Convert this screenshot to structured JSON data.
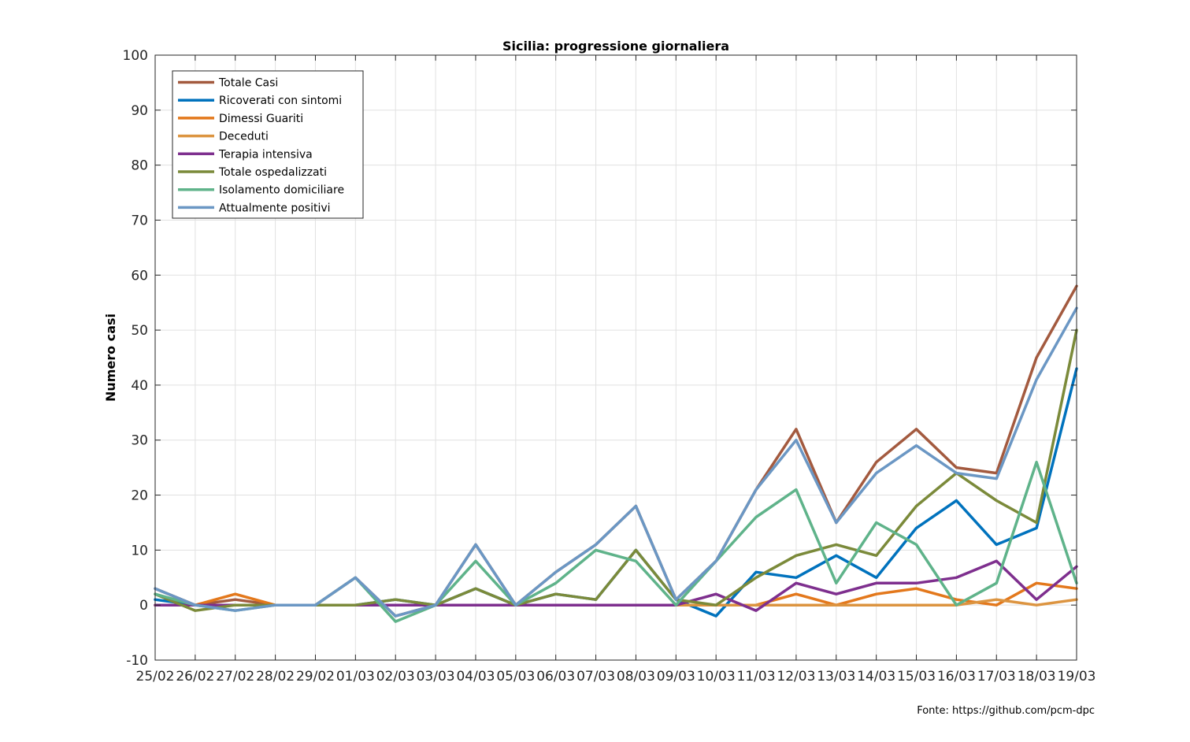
{
  "chart_data": {
    "type": "line",
    "title": "Sicilia: progressione giornaliera",
    "xlabel": "",
    "ylabel": "Numero casi",
    "ylim": [
      -10,
      100
    ],
    "yticks": [
      -10,
      0,
      10,
      20,
      30,
      40,
      50,
      60,
      70,
      80,
      90,
      100
    ],
    "grid": true,
    "legend_location": "top-left",
    "categories": [
      "25/02",
      "26/02",
      "27/02",
      "28/02",
      "29/02",
      "01/03",
      "02/03",
      "03/03",
      "04/03",
      "05/03",
      "06/03",
      "07/03",
      "08/03",
      "09/03",
      "10/03",
      "11/03",
      "12/03",
      "13/03",
      "14/03",
      "15/03",
      "16/03",
      "17/03",
      "18/03",
      "19/03"
    ],
    "series": [
      {
        "name": "Totale Casi",
        "color": "#a35a3f",
        "values": [
          3,
          0,
          1,
          0,
          0,
          5,
          -2,
          0,
          11,
          0,
          6,
          11,
          18,
          1,
          8,
          21,
          32,
          15,
          26,
          32,
          25,
          24,
          45,
          58
        ]
      },
      {
        "name": "Ricoverati con sintomi",
        "color": "#0072bd",
        "values": [
          1,
          0,
          0,
          0,
          0,
          0,
          1,
          0,
          3,
          0,
          2,
          1,
          10,
          1,
          -2,
          6,
          5,
          9,
          5,
          14,
          19,
          11,
          14,
          43
        ]
      },
      {
        "name": "Dimessi Guariti",
        "color": "#e3781c",
        "values": [
          0,
          0,
          2,
          0,
          0,
          0,
          0,
          0,
          0,
          0,
          0,
          0,
          0,
          0,
          0,
          0,
          2,
          0,
          2,
          3,
          1,
          0,
          4,
          3
        ]
      },
      {
        "name": "Deceduti",
        "color": "#dc9440",
        "values": [
          0,
          0,
          0,
          0,
          0,
          0,
          0,
          0,
          0,
          0,
          0,
          0,
          0,
          0,
          0,
          0,
          0,
          0,
          0,
          0,
          0,
          1,
          0,
          1
        ]
      },
      {
        "name": "Terapia intensiva",
        "color": "#7e2f8e",
        "values": [
          0,
          0,
          0,
          0,
          0,
          0,
          0,
          0,
          0,
          0,
          0,
          0,
          0,
          0,
          2,
          -1,
          4,
          2,
          4,
          4,
          5,
          8,
          1,
          7
        ]
      },
      {
        "name": "Totale ospedalizzati",
        "color": "#7b8a3a",
        "values": [
          2,
          -1,
          0,
          0,
          0,
          0,
          1,
          0,
          3,
          0,
          2,
          1,
          10,
          1,
          0,
          5,
          9,
          11,
          9,
          18,
          24,
          19,
          15,
          50
        ]
      },
      {
        "name": "Isolamento domiciliare",
        "color": "#5fb38a",
        "values": [
          2,
          0,
          -1,
          0,
          0,
          5,
          -3,
          0,
          8,
          0,
          4,
          10,
          8,
          0,
          8,
          16,
          21,
          4,
          15,
          11,
          0,
          4,
          26,
          4
        ]
      },
      {
        "name": "Attualmente positivi",
        "color": "#6b97c4",
        "values": [
          3,
          0,
          -1,
          0,
          0,
          5,
          -2,
          0,
          11,
          0,
          6,
          11,
          18,
          1,
          8,
          21,
          30,
          15,
          24,
          29,
          24,
          23,
          41,
          54
        ]
      }
    ]
  },
  "footer": {
    "source": "Fonte: https://github.com/pcm-dpc"
  }
}
